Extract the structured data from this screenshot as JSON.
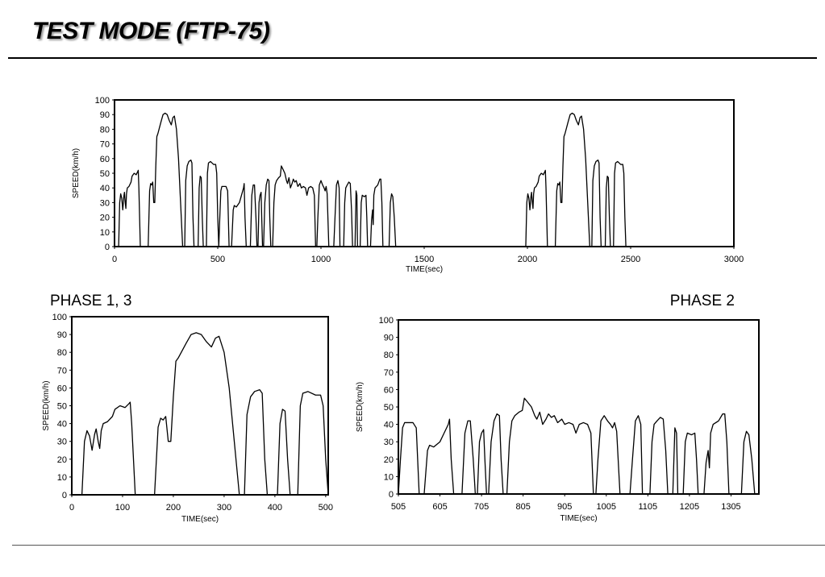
{
  "title": "TEST MODE (FTP-75)",
  "chart_data": [
    {
      "type": "line",
      "xlabel": "TIME(sec)",
      "ylabel": "SPEED(km/h)",
      "color": "#000000",
      "xlim": [
        0,
        3000
      ],
      "xticks": [
        0,
        500,
        1000,
        1500,
        2000,
        2500,
        3000
      ],
      "ylim": [
        0,
        100
      ],
      "yticks": [
        0,
        10,
        20,
        30,
        40,
        50,
        60,
        70,
        80,
        90,
        100
      ],
      "x": [
        0,
        20,
        25,
        30,
        35,
        40,
        45,
        48,
        52,
        55,
        58,
        62,
        70,
        80,
        85,
        95,
        105,
        112,
        115,
        118,
        125,
        163,
        170,
        175,
        180,
        185,
        190,
        195,
        200,
        205,
        210,
        225,
        235,
        245,
        255,
        265,
        275,
        283,
        290,
        300,
        310,
        320,
        330,
        340,
        345,
        352,
        360,
        370,
        375,
        380,
        385,
        405,
        410,
        415,
        420,
        425,
        430,
        445,
        450,
        455,
        465,
        480,
        490,
        495,
        500,
        505,
        510,
        515,
        520,
        540,
        548,
        555,
        567,
        575,
        580,
        590,
        605,
        615,
        625,
        628,
        632,
        638,
        658,
        665,
        672,
        678,
        685,
        690,
        695,
        700,
        705,
        710,
        713,
        717,
        722,
        728,
        735,
        742,
        748,
        752,
        757,
        766,
        772,
        778,
        785,
        795,
        803,
        808,
        815,
        825,
        833,
        838,
        845,
        852,
        860,
        866,
        873,
        880,
        888,
        898,
        905,
        915,
        925,
        932,
        940,
        950,
        960,
        968,
        974,
        980,
        985,
        992,
        1000,
        1008,
        1015,
        1020,
        1025,
        1030,
        1038,
        1062,
        1068,
        1075,
        1082,
        1088,
        1092,
        1110,
        1115,
        1120,
        1127,
        1135,
        1142,
        1148,
        1153,
        1165,
        1170,
        1174,
        1177,
        1190,
        1195,
        1200,
        1210,
        1218,
        1222,
        1226,
        1240,
        1245,
        1250,
        1253,
        1256,
        1262,
        1275,
        1285,
        1290,
        1295,
        1300,
        1330,
        1336,
        1342,
        1348,
        1355,
        1362,
        1372,
        1972,
        1992,
        1997,
        2002,
        2007,
        2012,
        2017,
        2020,
        2024,
        2027,
        2030,
        2034,
        2042,
        2052,
        2057,
        2067,
        2077,
        2084,
        2087,
        2090,
        2097,
        2135,
        2142,
        2147,
        2152,
        2157,
        2162,
        2167,
        2172,
        2177,
        2182,
        2197,
        2207,
        2217,
        2227,
        2237,
        2247,
        2255,
        2262,
        2272,
        2282,
        2292,
        2302,
        2312,
        2317,
        2324,
        2332,
        2342,
        2347,
        2352,
        2357,
        2377,
        2382,
        2387,
        2392,
        2397,
        2402,
        2417,
        2422,
        2427,
        2437,
        2452,
        2462,
        2467,
        2472,
        2477
      ],
      "values": [
        0,
        0,
        30,
        36,
        33,
        25,
        34,
        37,
        30,
        26,
        36,
        40,
        41,
        44,
        48,
        50,
        49,
        51,
        52,
        40,
        0,
        0,
        38,
        43,
        42,
        44,
        30,
        30,
        55,
        75,
        77,
        85,
        90,
        91,
        90,
        86,
        83,
        88,
        89,
        80,
        60,
        30,
        0,
        0,
        45,
        55,
        58,
        59,
        57,
        20,
        0,
        0,
        40,
        48,
        47,
        20,
        0,
        0,
        50,
        57,
        58,
        56,
        56,
        50,
        20,
        0,
        20,
        38,
        41,
        41,
        38,
        0,
        0,
        25,
        28,
        27,
        30,
        35,
        40,
        43,
        20,
        0,
        0,
        35,
        42,
        42,
        20,
        0,
        0,
        30,
        35,
        37,
        20,
        0,
        0,
        30,
        42,
        46,
        45,
        20,
        0,
        0,
        30,
        42,
        45,
        47,
        48,
        55,
        53,
        50,
        45,
        43,
        47,
        40,
        43,
        46,
        44,
        45,
        41,
        43,
        40,
        41,
        40,
        35,
        40,
        41,
        40,
        35,
        0,
        0,
        20,
        42,
        45,
        42,
        40,
        38,
        41,
        36,
        0,
        0,
        20,
        42,
        45,
        40,
        0,
        0,
        30,
        40,
        42,
        44,
        43,
        25,
        0,
        0,
        38,
        35,
        0,
        0,
        30,
        35,
        34,
        35,
        20,
        0,
        0,
        18,
        25,
        15,
        35,
        40,
        42,
        46,
        46,
        30,
        0,
        0,
        30,
        36,
        34,
        20,
        0,
        0,
        0,
        0,
        30,
        36,
        33,
        25,
        34,
        37,
        30,
        26,
        36,
        40,
        41,
        44,
        48,
        50,
        49,
        51,
        52,
        40,
        0,
        0,
        38,
        43,
        42,
        44,
        30,
        30,
        55,
        75,
        77,
        85,
        90,
        91,
        90,
        86,
        83,
        88,
        89,
        80,
        60,
        30,
        0,
        0,
        45,
        55,
        58,
        59,
        57,
        20,
        0,
        0,
        40,
        48,
        47,
        20,
        0,
        0,
        50,
        57,
        58,
        56,
        56,
        50,
        20,
        0
      ]
    },
    {
      "type": "line",
      "title": "PHASE 1, 3",
      "xlabel": "TIME(sec)",
      "ylabel": "SPEED(km/h)",
      "color": "#000000",
      "xlim": [
        0,
        505
      ],
      "xticks": [
        0,
        100,
        200,
        300,
        400,
        500
      ],
      "ylim": [
        0,
        100
      ],
      "yticks": [
        0,
        10,
        20,
        30,
        40,
        50,
        60,
        70,
        80,
        90,
        100
      ],
      "x": [
        0,
        20,
        25,
        30,
        35,
        40,
        45,
        48,
        52,
        55,
        58,
        62,
        70,
        80,
        85,
        95,
        105,
        112,
        115,
        118,
        125,
        163,
        170,
        175,
        180,
        185,
        190,
        195,
        200,
        205,
        210,
        225,
        235,
        245,
        255,
        265,
        275,
        283,
        290,
        300,
        310,
        320,
        330,
        340,
        345,
        352,
        360,
        370,
        375,
        380,
        385,
        405,
        410,
        415,
        420,
        425,
        430,
        445,
        450,
        455,
        465,
        480,
        490,
        495,
        500,
        505
      ],
      "values": [
        0,
        0,
        30,
        36,
        33,
        25,
        34,
        37,
        30,
        26,
        36,
        40,
        41,
        44,
        48,
        50,
        49,
        51,
        52,
        40,
        0,
        0,
        38,
        43,
        42,
        44,
        30,
        30,
        55,
        75,
        77,
        85,
        90,
        91,
        90,
        86,
        83,
        88,
        89,
        80,
        60,
        30,
        0,
        0,
        45,
        55,
        58,
        59,
        57,
        20,
        0,
        0,
        40,
        48,
        47,
        20,
        0,
        0,
        50,
        57,
        58,
        56,
        56,
        50,
        20,
        0
      ]
    },
    {
      "type": "line",
      "title": "PHASE 2",
      "xlabel": "TIME(sec)",
      "ylabel": "SPEED(km/h)",
      "color": "#000000",
      "xlim": [
        505,
        1372
      ],
      "xticks": [
        505,
        605,
        705,
        805,
        905,
        1005,
        1105,
        1205,
        1305
      ],
      "ylim": [
        0,
        100
      ],
      "yticks": [
        0,
        10,
        20,
        30,
        40,
        50,
        60,
        70,
        80,
        90,
        100
      ],
      "x": [
        505,
        510,
        515,
        520,
        540,
        548,
        555,
        567,
        575,
        580,
        590,
        605,
        615,
        625,
        628,
        632,
        638,
        658,
        665,
        672,
        678,
        685,
        690,
        695,
        700,
        705,
        710,
        713,
        717,
        722,
        728,
        735,
        742,
        748,
        752,
        757,
        766,
        772,
        778,
        785,
        795,
        803,
        808,
        815,
        825,
        833,
        838,
        845,
        852,
        860,
        866,
        873,
        880,
        888,
        898,
        905,
        915,
        925,
        932,
        940,
        950,
        960,
        968,
        974,
        980,
        985,
        992,
        1000,
        1008,
        1015,
        1020,
        1025,
        1030,
        1038,
        1062,
        1068,
        1075,
        1082,
        1088,
        1092,
        1110,
        1115,
        1120,
        1127,
        1135,
        1142,
        1148,
        1153,
        1165,
        1170,
        1174,
        1177,
        1190,
        1195,
        1200,
        1210,
        1218,
        1222,
        1226,
        1240,
        1245,
        1250,
        1253,
        1256,
        1262,
        1275,
        1285,
        1290,
        1295,
        1300,
        1330,
        1336,
        1342,
        1348,
        1355,
        1362,
        1372
      ],
      "values": [
        0,
        20,
        38,
        41,
        41,
        38,
        0,
        0,
        25,
        28,
        27,
        30,
        35,
        40,
        43,
        20,
        0,
        0,
        35,
        42,
        42,
        20,
        0,
        0,
        30,
        35,
        37,
        20,
        0,
        0,
        30,
        42,
        46,
        45,
        20,
        0,
        0,
        30,
        42,
        45,
        47,
        48,
        55,
        53,
        50,
        45,
        43,
        47,
        40,
        43,
        46,
        44,
        45,
        41,
        43,
        40,
        41,
        40,
        35,
        40,
        41,
        40,
        35,
        0,
        0,
        20,
        42,
        45,
        42,
        40,
        38,
        41,
        36,
        0,
        0,
        20,
        42,
        45,
        40,
        0,
        0,
        30,
        40,
        42,
        44,
        43,
        25,
        0,
        0,
        38,
        35,
        0,
        0,
        30,
        35,
        34,
        35,
        20,
        0,
        0,
        18,
        25,
        15,
        35,
        40,
        42,
        46,
        46,
        30,
        0,
        0,
        30,
        36,
        34,
        20,
        0,
        0
      ]
    }
  ]
}
